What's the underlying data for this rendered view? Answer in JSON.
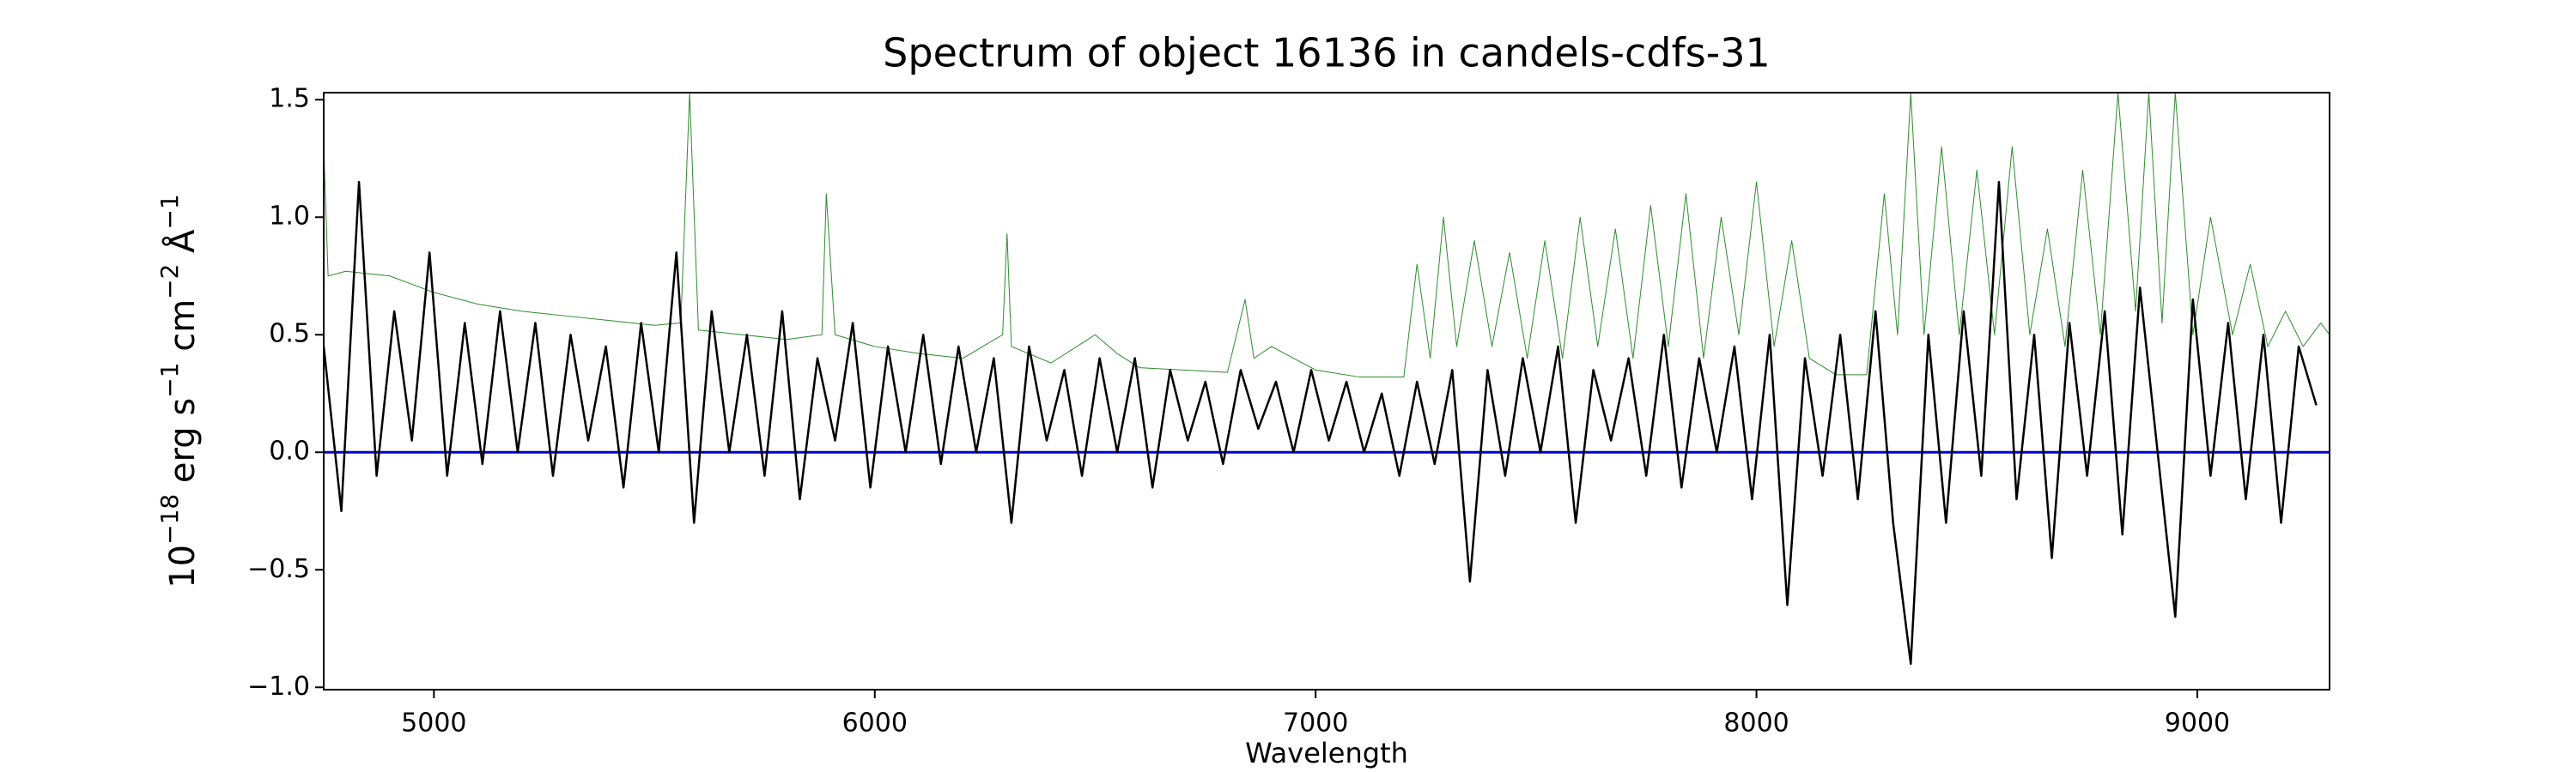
{
  "chart_data": {
    "type": "line",
    "title": "Spectrum of object 16136 in candels-cdfs-31",
    "xlabel": "Wavelength",
    "ylabel": [
      "10",
      "−18",
      " erg s",
      "−1",
      " cm",
      "−2",
      " Å",
      "−1"
    ],
    "xlim": [
      4750,
      9300
    ],
    "ylim": [
      -1.01,
      1.53
    ],
    "xticks": [
      5000,
      6000,
      7000,
      8000,
      9000
    ],
    "yticks": [
      {
        "value": -1,
        "label": "−1.0"
      },
      {
        "value": -0.5,
        "label": "−0.5"
      },
      {
        "value": 0,
        "label": "0.0"
      },
      {
        "value": 0.5,
        "label": "0.5"
      },
      {
        "value": 1,
        "label": "1.0"
      },
      {
        "value": 1.5,
        "label": "1.5"
      }
    ],
    "series": [
      {
        "color": "#2e8b2e",
        "width": 1,
        "x": [
          4750,
          4760,
          4800,
          4900,
          5000,
          5100,
          5200,
          5300,
          5400,
          5500,
          5560,
          5580,
          5600,
          5700,
          5800,
          5880,
          5890,
          5910,
          6000,
          6100,
          6200,
          6290,
          6300,
          6310,
          6400,
          6500,
          6550,
          6600,
          6700,
          6800,
          6840,
          6860,
          6900,
          7000,
          7100,
          7200,
          7230,
          7260,
          7290,
          7320,
          7360,
          7400,
          7440,
          7480,
          7520,
          7560,
          7600,
          7640,
          7680,
          7720,
          7760,
          7800,
          7840,
          7880,
          7920,
          7960,
          8000,
          8040,
          8080,
          8120,
          8180,
          8250,
          8290,
          8320,
          8350,
          8380,
          8420,
          8460,
          8500,
          8540,
          8580,
          8620,
          8660,
          8700,
          8740,
          8780,
          8820,
          8860,
          8890,
          8920,
          8950,
          8990,
          9030,
          9080,
          9120,
          9160,
          9200,
          9240,
          9280,
          9300
        ],
        "values": [
          1.3,
          0.75,
          0.77,
          0.75,
          0.68,
          0.63,
          0.6,
          0.58,
          0.56,
          0.54,
          0.55,
          1.53,
          0.52,
          0.5,
          0.48,
          0.5,
          1.1,
          0.5,
          0.45,
          0.42,
          0.4,
          0.5,
          0.93,
          0.45,
          0.38,
          0.5,
          0.42,
          0.36,
          0.35,
          0.34,
          0.65,
          0.4,
          0.45,
          0.35,
          0.32,
          0.32,
          0.8,
          0.4,
          1.0,
          0.45,
          0.9,
          0.45,
          0.85,
          0.4,
          0.9,
          0.4,
          1.0,
          0.45,
          0.95,
          0.4,
          1.05,
          0.45,
          1.1,
          0.4,
          1.0,
          0.5,
          1.15,
          0.45,
          0.9,
          0.4,
          0.33,
          0.33,
          1.1,
          0.5,
          1.53,
          0.5,
          1.3,
          0.5,
          1.2,
          0.5,
          1.3,
          0.5,
          0.95,
          0.45,
          1.2,
          0.5,
          1.53,
          0.6,
          1.53,
          0.55,
          1.53,
          0.5,
          1.0,
          0.5,
          0.8,
          0.45,
          0.6,
          0.45,
          0.55,
          0.5
        ]
      },
      {
        "color": "#0000cc",
        "width": 3,
        "x": [
          4750,
          9300
        ],
        "values": [
          0.0,
          0.0
        ]
      },
      {
        "color": "#000000",
        "width": 2.5,
        "x": [
          4750,
          4790,
          4830,
          4870,
          4910,
          4950,
          4990,
          5030,
          5070,
          5110,
          5150,
          5190,
          5230,
          5270,
          5310,
          5350,
          5390,
          5430,
          5470,
          5510,
          5550,
          5590,
          5630,
          5670,
          5710,
          5750,
          5790,
          5830,
          5870,
          5910,
          5950,
          5990,
          6030,
          6070,
          6110,
          6150,
          6190,
          6230,
          6270,
          6310,
          6350,
          6390,
          6430,
          6470,
          6510,
          6550,
          6590,
          6630,
          6670,
          6710,
          6750,
          6790,
          6830,
          6870,
          6910,
          6950,
          6990,
          7030,
          7070,
          7110,
          7150,
          7190,
          7230,
          7270,
          7310,
          7350,
          7390,
          7430,
          7470,
          7510,
          7550,
          7590,
          7630,
          7670,
          7710,
          7750,
          7790,
          7830,
          7870,
          7910,
          7950,
          7990,
          8030,
          8070,
          8110,
          8150,
          8190,
          8230,
          8270,
          8310,
          8350,
          8390,
          8430,
          8470,
          8510,
          8550,
          8590,
          8630,
          8670,
          8710,
          8750,
          8790,
          8830,
          8870,
          8910,
          8950,
          8990,
          9030,
          9070,
          9110,
          9150,
          9190,
          9230,
          9270
        ],
        "values": [
          0.45,
          -0.25,
          1.15,
          -0.1,
          0.6,
          0.05,
          0.85,
          -0.1,
          0.55,
          -0.05,
          0.6,
          0.0,
          0.55,
          -0.1,
          0.5,
          0.05,
          0.45,
          -0.15,
          0.55,
          0.0,
          0.85,
          -0.3,
          0.6,
          0.0,
          0.5,
          -0.1,
          0.6,
          -0.2,
          0.4,
          0.05,
          0.55,
          -0.15,
          0.45,
          0.0,
          0.5,
          -0.05,
          0.45,
          0.0,
          0.4,
          -0.3,
          0.45,
          0.05,
          0.35,
          -0.1,
          0.4,
          0.0,
          0.4,
          -0.15,
          0.35,
          0.05,
          0.3,
          -0.05,
          0.35,
          0.1,
          0.3,
          0.0,
          0.35,
          0.05,
          0.3,
          0.0,
          0.25,
          -0.1,
          0.3,
          -0.05,
          0.35,
          -0.55,
          0.35,
          -0.1,
          0.4,
          0.0,
          0.45,
          -0.3,
          0.35,
          0.05,
          0.4,
          -0.1,
          0.5,
          -0.15,
          0.4,
          0.0,
          0.45,
          -0.2,
          0.5,
          -0.65,
          0.4,
          -0.1,
          0.5,
          -0.2,
          0.6,
          -0.3,
          -0.9,
          0.5,
          -0.3,
          0.6,
          -0.1,
          1.15,
          -0.2,
          0.5,
          -0.45,
          0.55,
          -0.1,
          0.6,
          -0.35,
          0.7,
          0.0,
          -0.7,
          0.65,
          -0.1,
          0.55,
          -0.2,
          0.5,
          -0.3,
          0.45,
          0.2
        ]
      }
    ]
  }
}
